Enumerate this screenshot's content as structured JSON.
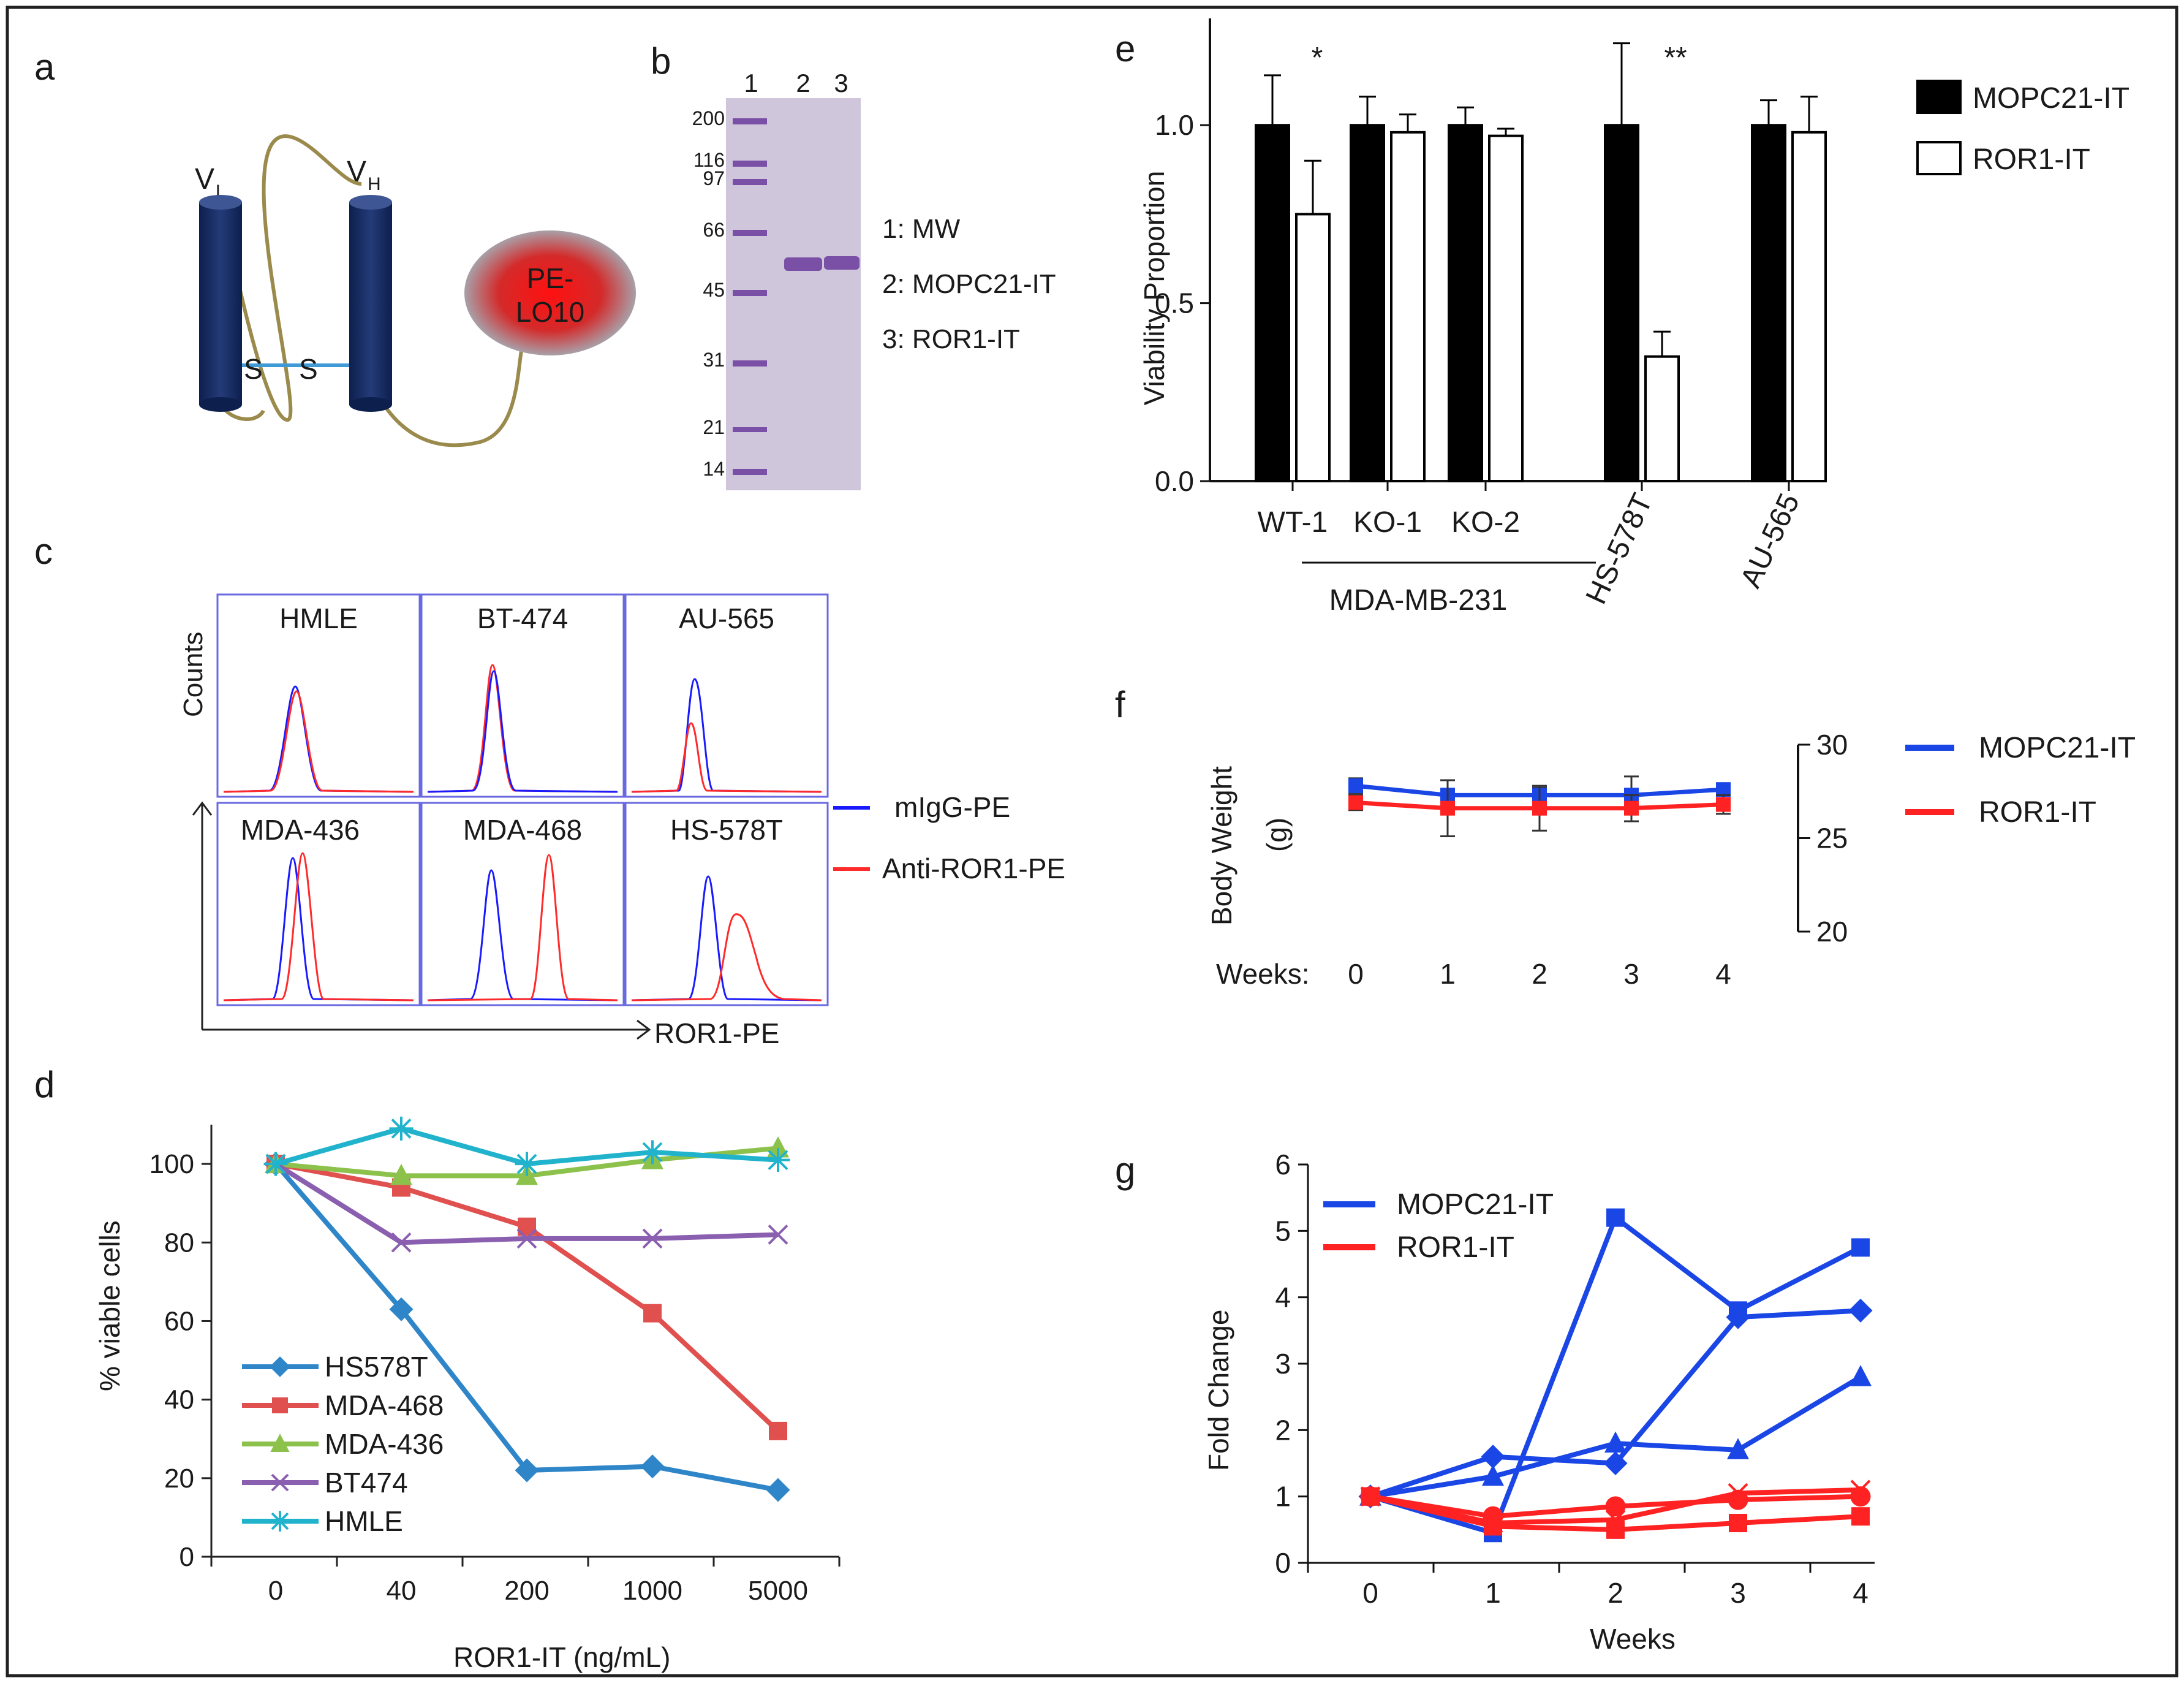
{
  "panels": {
    "a": {
      "label": "a",
      "vl_main": "V",
      "vl_sub": "L",
      "vh_main": "V",
      "vh_sub": "H",
      "disulfide_s1": "S",
      "disulfide_s2": "S",
      "toxin_line1": "PE-",
      "toxin_line2": "LO10",
      "colors": {
        "domain": "#132a5e",
        "linker": "#9a8a4c",
        "toxin": "#d42a2a",
        "bond": "#3f9ad6"
      }
    },
    "b": {
      "label": "b",
      "lanes": [
        "1",
        "2",
        "3"
      ],
      "mw_markers": [
        "200",
        "116",
        "97",
        "66",
        "45",
        "31",
        "21",
        "14"
      ],
      "legend": [
        "1: MW",
        "2: MOPC21-IT",
        "3: ROR1-IT"
      ]
    },
    "c": {
      "label": "c",
      "ylabel": "Counts",
      "xlabel": "ROR1-PE",
      "cell_lines": [
        "HMLE",
        "BT-474",
        "AU-565",
        "MDA-436",
        "MDA-468",
        "HS-578T"
      ],
      "legend": [
        {
          "name": "mIgG-PE",
          "color": "#1a1aff"
        },
        {
          "name": "Anti-ROR1-PE",
          "color": "#ff2a2a"
        }
      ]
    },
    "d": {
      "label": "d",
      "ylabel": "% viable cells",
      "xlabel": "ROR1-IT  (ng/mL)"
    },
    "e": {
      "label": "e",
      "ylabel": "Viability Proportion",
      "group_label": "MDA-MB-231",
      "significance": [
        "*",
        "**"
      ]
    },
    "f": {
      "label": "f",
      "ylabel_line1": "Body Weight",
      "ylabel_line2": "(g)",
      "xprefix": "Weeks:"
    },
    "g": {
      "label": "g",
      "ylabel": "Fold Change",
      "xlabel": "Weeks"
    }
  },
  "chart_data": [
    {
      "panel": "d",
      "type": "line",
      "categories": [
        "0",
        "40",
        "200",
        "1000",
        "5000"
      ],
      "ylim": [
        0,
        110
      ],
      "yticks": [
        0,
        20,
        40,
        60,
        80,
        100
      ],
      "title": "",
      "xlabel": "ROR1-IT  (ng/mL)",
      "ylabel": "% viable cells",
      "legend_position": "bottom-left",
      "series": [
        {
          "name": "HS578T",
          "color": "#2e86c8",
          "marker": "diamond",
          "values": [
            100,
            63,
            22,
            23,
            17
          ]
        },
        {
          "name": "MDA-468",
          "color": "#e0504f",
          "marker": "square",
          "values": [
            100,
            94,
            84,
            62,
            32
          ]
        },
        {
          "name": "MDA-436",
          "color": "#8cc14b",
          "marker": "triangle",
          "values": [
            100,
            97,
            97,
            101,
            104
          ]
        },
        {
          "name": "BT474",
          "color": "#8a5fb0",
          "marker": "x",
          "values": [
            100,
            80,
            81,
            81,
            82
          ]
        },
        {
          "name": "HMLE",
          "color": "#21b3cc",
          "marker": "star",
          "values": [
            100,
            109,
            100,
            103,
            101
          ]
        }
      ]
    },
    {
      "panel": "e",
      "type": "bar",
      "categories": [
        "WT-1",
        "KO-1",
        "KO-2",
        "HS-578T",
        "AU-565"
      ],
      "ylim": [
        0,
        1.3
      ],
      "yticks": [
        "0.0",
        "0.5",
        "1.0"
      ],
      "title": "",
      "xlabel": "",
      "ylabel": "Viability Proportion",
      "legend_position": "top-right",
      "series": [
        {
          "name": "MOPC21-IT",
          "fill": "#000000",
          "values": [
            1.0,
            1.0,
            1.0,
            1.0,
            1.0
          ],
          "errors": [
            0.14,
            0.08,
            0.05,
            0.23,
            0.07
          ]
        },
        {
          "name": "ROR1-IT",
          "fill": "#ffffff",
          "values": [
            0.75,
            0.98,
            0.97,
            0.35,
            0.98
          ],
          "errors": [
            0.15,
            0.05,
            0.02,
            0.07,
            0.1
          ]
        }
      ]
    },
    {
      "panel": "f",
      "type": "line",
      "x": [
        "0",
        "1",
        "2",
        "3",
        "4"
      ],
      "ylim": [
        20,
        30
      ],
      "yticks": [
        "20",
        "25",
        "30"
      ],
      "title": "",
      "xlabel": "Weeks",
      "ylabel": "Body Weight (g)",
      "legend_position": "right",
      "series": [
        {
          "name": "MOPC21-IT",
          "color": "#1a46e6",
          "values": [
            27.8,
            27.3,
            27.3,
            27.3,
            27.6
          ],
          "errors": [
            0.4,
            0.8,
            0.4,
            1.0,
            0.3
          ]
        },
        {
          "name": "ROR1-IT",
          "color": "#ff2222",
          "values": [
            26.9,
            26.6,
            26.6,
            26.6,
            26.8
          ],
          "errors": [
            0.4,
            1.5,
            1.2,
            0.7,
            0.5
          ]
        }
      ]
    },
    {
      "panel": "g",
      "type": "line",
      "x": [
        "0",
        "1",
        "2",
        "3",
        "4"
      ],
      "ylim": [
        0,
        6
      ],
      "yticks": [
        "0",
        "1",
        "2",
        "3",
        "4",
        "5",
        "6"
      ],
      "title": "",
      "xlabel": "Weeks",
      "ylabel": "Fold Change",
      "legend_position": "top-left",
      "legend": [
        {
          "name": "MOPC21-IT",
          "color": "#1a46e6"
        },
        {
          "name": "ROR1-IT",
          "color": "#ff2222"
        }
      ],
      "series": [
        {
          "name": "MOPC21-IT",
          "color": "#1a46e6",
          "marker": "square",
          "values": [
            1.0,
            0.45,
            5.2,
            3.8,
            4.75
          ]
        },
        {
          "name": "MOPC21-IT",
          "color": "#1a46e6",
          "marker": "diamond",
          "values": [
            1.0,
            1.6,
            1.5,
            3.7,
            3.8
          ]
        },
        {
          "name": "MOPC21-IT",
          "color": "#1a46e6",
          "marker": "triangle",
          "values": [
            1.0,
            1.3,
            1.8,
            1.7,
            2.8
          ]
        },
        {
          "name": "ROR1-IT",
          "color": "#ff2222",
          "marker": "square",
          "values": [
            1.0,
            0.55,
            0.5,
            0.6,
            0.7
          ]
        },
        {
          "name": "ROR1-IT",
          "color": "#ff2222",
          "marker": "circle",
          "values": [
            1.0,
            0.7,
            0.85,
            0.95,
            1.0
          ]
        },
        {
          "name": "ROR1-IT",
          "color": "#ff2222",
          "marker": "x",
          "values": [
            1.0,
            0.6,
            0.65,
            1.05,
            1.1
          ]
        }
      ]
    }
  ]
}
